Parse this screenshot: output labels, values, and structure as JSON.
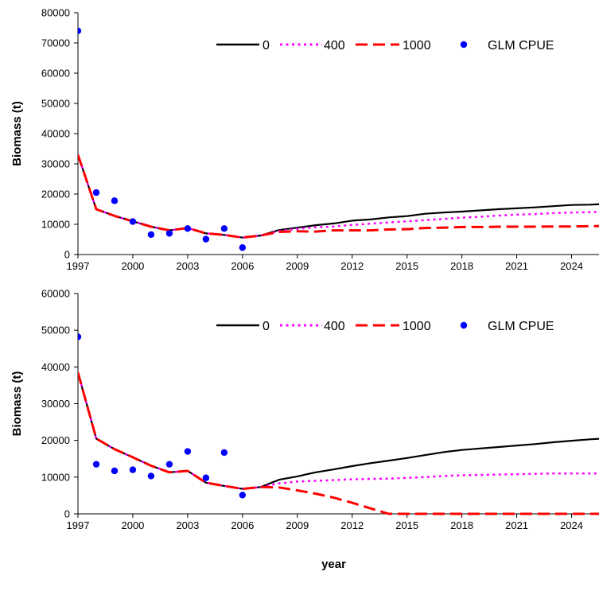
{
  "chart_data": [
    {
      "type": "line",
      "ylabel": "Biomass (t)",
      "xlabel": "",
      "xlim": [
        1997,
        2025.5
      ],
      "ylim": [
        0,
        80000
      ],
      "y_ticks": [
        0,
        10000,
        20000,
        30000,
        40000,
        50000,
        60000,
        70000,
        80000
      ],
      "x_ticks": [
        1997,
        2000,
        2003,
        2006,
        2009,
        2012,
        2015,
        2018,
        2021,
        2024
      ],
      "grid": false,
      "legend_position": "top-right",
      "x": [
        1997,
        1998,
        1999,
        2000,
        2001,
        2002,
        2003,
        2004,
        2005,
        2006,
        2007,
        2008,
        2009,
        2010,
        2011,
        2012,
        2013,
        2014,
        2015,
        2016,
        2017,
        2018,
        2019,
        2020,
        2021,
        2022,
        2023,
        2024,
        2025,
        2026
      ],
      "series": [
        {
          "name": "0",
          "style": "solid",
          "color": "#000000",
          "values": [
            33000,
            15000,
            12800,
            11000,
            9200,
            8000,
            8800,
            7000,
            6500,
            5600,
            6300,
            8100,
            8900,
            9700,
            10300,
            11200,
            11600,
            12300,
            12700,
            13500,
            13900,
            14200,
            14600,
            15000,
            15300,
            15600,
            16000,
            16400,
            16500,
            16800
          ]
        },
        {
          "name": "400",
          "style": "dotted",
          "color": "#ff00ff",
          "values": [
            33000,
            15000,
            12800,
            11000,
            9200,
            8000,
            8800,
            7000,
            6500,
            5600,
            6300,
            7800,
            8500,
            9000,
            9300,
            9800,
            10200,
            10600,
            11000,
            11400,
            11800,
            12200,
            12500,
            12900,
            13200,
            13400,
            13700,
            13900,
            14000,
            14200
          ]
        },
        {
          "name": "1000",
          "style": "dashed",
          "color": "#ff0000",
          "values": [
            33000,
            15000,
            12800,
            11000,
            9200,
            8000,
            8800,
            7000,
            6500,
            5600,
            6300,
            7500,
            7700,
            7600,
            8000,
            8000,
            8000,
            8300,
            8400,
            8800,
            8900,
            9100,
            9100,
            9200,
            9200,
            9200,
            9300,
            9300,
            9400,
            9400
          ]
        },
        {
          "name": "GLM CPUE",
          "style": "markers",
          "color": "#0000ff",
          "x": [
            1997,
            1998,
            1999,
            2000,
            2001,
            2002,
            2003,
            2004,
            2005,
            2006
          ],
          "values": [
            74000,
            20500,
            17800,
            10900,
            6600,
            7000,
            8600,
            5100,
            8600,
            2300
          ]
        }
      ]
    },
    {
      "type": "line",
      "ylabel": "Biomass (t)",
      "xlabel": "year",
      "xlim": [
        1997,
        2025.5
      ],
      "ylim": [
        0,
        60000
      ],
      "y_ticks": [
        0,
        10000,
        20000,
        30000,
        40000,
        50000,
        60000
      ],
      "x_ticks": [
        1997,
        2000,
        2003,
        2006,
        2009,
        2012,
        2015,
        2018,
        2021,
        2024
      ],
      "grid": false,
      "legend_position": "top-right",
      "x": [
        1997,
        1998,
        1999,
        2000,
        2001,
        2002,
        2003,
        2004,
        2005,
        2006,
        2007,
        2008,
        2009,
        2010,
        2011,
        2012,
        2013,
        2014,
        2015,
        2016,
        2017,
        2018,
        2019,
        2020,
        2021,
        2022,
        2023,
        2024,
        2025,
        2026
      ],
      "series": [
        {
          "name": "0",
          "style": "solid",
          "color": "#000000",
          "values": [
            38500,
            20500,
            17600,
            15400,
            13100,
            11300,
            11700,
            8500,
            7600,
            6800,
            7300,
            9300,
            10200,
            11300,
            12100,
            13000,
            13800,
            14500,
            15200,
            16000,
            16800,
            17400,
            17800,
            18200,
            18600,
            19000,
            19500,
            19900,
            20300,
            20600
          ]
        },
        {
          "name": "400",
          "style": "dotted",
          "color": "#ff00ff",
          "values": [
            38500,
            20500,
            17600,
            15400,
            13100,
            11300,
            11700,
            8500,
            7600,
            6800,
            7300,
            8300,
            8800,
            9000,
            9200,
            9400,
            9500,
            9600,
            9800,
            10000,
            10300,
            10500,
            10600,
            10700,
            10800,
            10900,
            11000,
            11000,
            11000,
            11000
          ]
        },
        {
          "name": "1000",
          "style": "dashed",
          "color": "#ff0000",
          "values": [
            38500,
            20500,
            17600,
            15400,
            13100,
            11300,
            11700,
            8500,
            7600,
            6800,
            7300,
            7200,
            6400,
            5500,
            4400,
            3000,
            1500,
            0,
            0,
            0,
            0,
            0,
            0,
            0,
            0,
            0,
            0,
            0,
            0,
            0
          ]
        },
        {
          "name": "GLM CPUE",
          "style": "markers",
          "color": "#0000ff",
          "x": [
            1997,
            1998,
            1999,
            2000,
            2001,
            2002,
            2003,
            2004,
            2005,
            2006
          ],
          "values": [
            48200,
            13500,
            11700,
            12000,
            10300,
            13500,
            17000,
            9800,
            16700,
            5100
          ]
        }
      ]
    }
  ]
}
